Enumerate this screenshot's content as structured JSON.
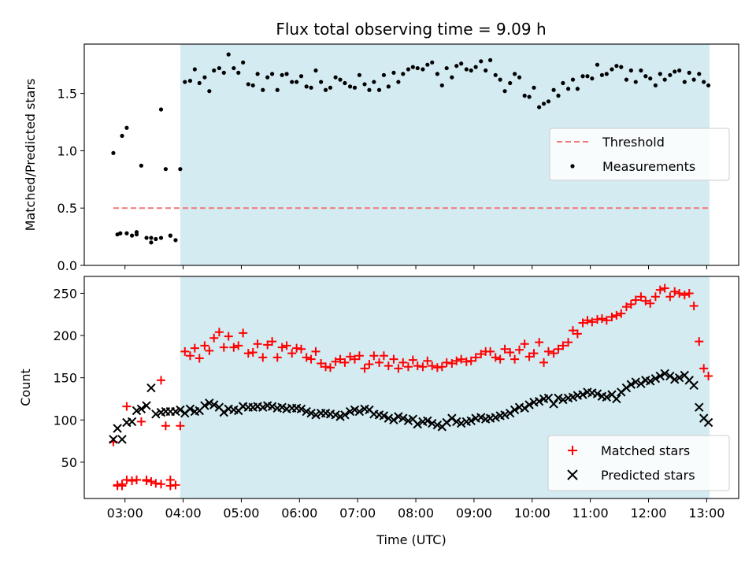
{
  "figure_title": "Flux total observing time = 9.09 h",
  "colors": {
    "shade": "#d4ebf2",
    "threshold": "#f07878",
    "measurement": "#000000",
    "matched": "#ff0000",
    "predicted": "#000000"
  },
  "chart_data": [
    {
      "type": "scatter",
      "name": "ratio",
      "title": "Flux total observing time = 9.09 h",
      "xlabel": "",
      "ylabel": "Matched/Predicted stars",
      "xlim": [
        2.3,
        13.55
      ],
      "ylim": [
        0,
        1.93
      ],
      "yticks": [
        "0.0",
        "0.5",
        "1.0",
        "1.5"
      ],
      "yticks_values": [
        0,
        0.5,
        1.0,
        1.5
      ],
      "shaded_region": [
        3.95,
        13.05
      ],
      "threshold": {
        "label": "Threshold",
        "value": 0.5,
        "x": [
          2.8,
          13.05
        ]
      },
      "legend": {
        "position": "center-right",
        "entries": [
          "Threshold",
          "Measurements"
        ]
      },
      "series": [
        {
          "name": "Measurements",
          "x": [
            2.8,
            2.87,
            2.95,
            3.03,
            3.12,
            3.2,
            3.28,
            3.37,
            3.45,
            3.53,
            3.62,
            3.7,
            3.78,
            3.87,
            3.95,
            4.03,
            4.12,
            4.2,
            4.28,
            4.37,
            4.45,
            4.53,
            4.62,
            4.7,
            4.78,
            4.87,
            4.95,
            5.03,
            5.12,
            5.2,
            5.28,
            5.37,
            5.45,
            5.53,
            5.62,
            5.7,
            5.78,
            5.87,
            5.95,
            6.03,
            6.12,
            6.2,
            6.28,
            6.37,
            6.45,
            6.53,
            6.62,
            6.7,
            6.78,
            6.87,
            6.95,
            7.03,
            7.12,
            7.2,
            7.28,
            7.37,
            7.45,
            7.53,
            7.62,
            7.7,
            7.78,
            7.87,
            7.95,
            8.03,
            8.12,
            8.2,
            8.28,
            8.37,
            8.45,
            8.53,
            8.62,
            8.7,
            8.78,
            8.87,
            8.95,
            9.03,
            9.12,
            9.2,
            9.28,
            9.37,
            9.45,
            9.53,
            9.62,
            9.7,
            9.78,
            9.87,
            9.95,
            10.03,
            10.12,
            10.2,
            10.28,
            10.37,
            10.45,
            10.53,
            10.62,
            10.7,
            10.78,
            10.87,
            10.95,
            11.03,
            11.12,
            11.2,
            11.28,
            11.37,
            11.45,
            11.53,
            11.62,
            11.7,
            11.78,
            11.87,
            11.95,
            12.03,
            12.12,
            12.2,
            12.28,
            12.37,
            12.45,
            12.53,
            12.62,
            12.7,
            12.78,
            12.87,
            12.95,
            13.03,
            2.92,
            3.03,
            3.2,
            3.45,
            3.62,
            3.78
          ],
          "y": [
            0.98,
            0.27,
            1.13,
            0.28,
            0.26,
            0.27,
            0.87,
            0.24,
            0.2,
            0.23,
            1.36,
            0.84,
            0.26,
            0.22,
            0.84,
            1.6,
            1.61,
            1.71,
            1.59,
            1.64,
            1.52,
            1.7,
            1.72,
            1.68,
            1.84,
            1.72,
            1.68,
            1.77,
            1.58,
            1.57,
            1.67,
            1.53,
            1.64,
            1.67,
            1.53,
            1.66,
            1.67,
            1.6,
            1.6,
            1.65,
            1.56,
            1.55,
            1.7,
            1.6,
            1.53,
            1.55,
            1.64,
            1.62,
            1.59,
            1.56,
            1.55,
            1.66,
            1.58,
            1.53,
            1.6,
            1.53,
            1.66,
            1.56,
            1.68,
            1.6,
            1.67,
            1.71,
            1.73,
            1.72,
            1.71,
            1.75,
            1.77,
            1.67,
            1.57,
            1.72,
            1.64,
            1.74,
            1.76,
            1.71,
            1.7,
            1.73,
            1.78,
            1.7,
            1.79,
            1.66,
            1.62,
            1.52,
            1.59,
            1.67,
            1.64,
            1.48,
            1.47,
            1.55,
            1.38,
            1.41,
            1.43,
            1.53,
            1.48,
            1.59,
            1.54,
            1.62,
            1.54,
            1.65,
            1.65,
            1.63,
            1.75,
            1.66,
            1.67,
            1.71,
            1.74,
            1.73,
            1.62,
            1.7,
            1.6,
            1.7,
            1.65,
            1.63,
            1.57,
            1.67,
            1.62,
            1.66,
            1.69,
            1.7,
            1.6,
            1.68,
            1.62,
            1.67,
            1.6,
            1.57,
            0.28,
            1.2,
            0.29,
            0.24,
            0.24,
            0.26
          ]
        }
      ]
    },
    {
      "type": "scatter",
      "name": "counts",
      "xlabel": "Time (UTC)",
      "ylabel": "Count",
      "xlim": [
        2.3,
        13.55
      ],
      "ylim": [
        7,
        270
      ],
      "xticks": [
        "03:00",
        "04:00",
        "05:00",
        "06:00",
        "07:00",
        "08:00",
        "09:00",
        "10:00",
        "11:00",
        "12:00",
        "13:00"
      ],
      "xticks_values": [
        3,
        4,
        5,
        6,
        7,
        8,
        9,
        10,
        11,
        12,
        13
      ],
      "yticks": [
        "50",
        "100",
        "150",
        "200",
        "250"
      ],
      "yticks_values": [
        50,
        100,
        150,
        200,
        250
      ],
      "shaded_region": [
        3.95,
        13.05
      ],
      "legend": {
        "position": "bottom-right",
        "entries": [
          "Matched stars",
          "Predicted stars"
        ]
      },
      "series": [
        {
          "name": "Matched stars",
          "marker": "plus",
          "x": [
            2.8,
            2.87,
            2.95,
            3.03,
            3.12,
            3.2,
            3.28,
            3.37,
            3.45,
            3.53,
            3.62,
            3.7,
            3.78,
            3.87,
            3.95,
            4.03,
            4.12,
            4.2,
            4.28,
            4.37,
            4.45,
            4.53,
            4.62,
            4.7,
            4.78,
            4.87,
            4.95,
            5.03,
            5.12,
            5.2,
            5.28,
            5.37,
            5.45,
            5.53,
            5.62,
            5.7,
            5.78,
            5.87,
            5.95,
            6.03,
            6.12,
            6.2,
            6.28,
            6.37,
            6.45,
            6.53,
            6.62,
            6.7,
            6.78,
            6.87,
            6.95,
            7.03,
            7.12,
            7.2,
            7.28,
            7.37,
            7.45,
            7.53,
            7.62,
            7.7,
            7.78,
            7.87,
            7.95,
            8.03,
            8.12,
            8.2,
            8.28,
            8.37,
            8.45,
            8.53,
            8.62,
            8.7,
            8.78,
            8.87,
            8.95,
            9.03,
            9.12,
            9.2,
            9.28,
            9.37,
            9.45,
            9.53,
            9.62,
            9.7,
            9.78,
            9.87,
            9.95,
            10.03,
            10.12,
            10.2,
            10.28,
            10.37,
            10.45,
            10.53,
            10.62,
            10.7,
            10.78,
            10.87,
            10.95,
            11.03,
            11.12,
            11.2,
            11.28,
            11.37,
            11.45,
            11.53,
            11.62,
            11.7,
            11.78,
            11.87,
            11.95,
            12.03,
            12.12,
            12.2,
            12.28,
            12.37,
            12.45,
            12.53,
            12.62,
            12.7,
            12.78,
            12.87,
            12.95,
            13.03,
            2.87,
            2.95,
            3.03,
            3.2,
            3.37,
            3.62,
            3.78
          ],
          "y": [
            74,
            23,
            22,
            116,
            28,
            29,
            98,
            28,
            27,
            25,
            147,
            93,
            29,
            23,
            93,
            181,
            176,
            185,
            173,
            188,
            182,
            197,
            204,
            186,
            199,
            186,
            188,
            203,
            179,
            180,
            190,
            174,
            189,
            193,
            174,
            186,
            188,
            179,
            185,
            184,
            174,
            172,
            181,
            167,
            163,
            162,
            169,
            172,
            168,
            175,
            172,
            176,
            161,
            166,
            176,
            168,
            176,
            164,
            172,
            161,
            168,
            163,
            171,
            164,
            163,
            170,
            164,
            162,
            163,
            168,
            167,
            170,
            172,
            169,
            170,
            174,
            178,
            181,
            181,
            174,
            172,
            184,
            180,
            172,
            183,
            190,
            175,
            179,
            192,
            168,
            181,
            179,
            184,
            188,
            192,
            206,
            202,
            215,
            218,
            216,
            219,
            220,
            218,
            222,
            224,
            226,
            234,
            237,
            242,
            246,
            241,
            238,
            246,
            254,
            256,
            246,
            252,
            250,
            248,
            250,
            235,
            193,
            161,
            152,
            22,
            24,
            29,
            29,
            29,
            24,
            22
          ]
        },
        {
          "name": "Predicted stars",
          "marker": "cross",
          "x": [
            2.8,
            2.87,
            2.95,
            3.03,
            3.12,
            3.2,
            3.28,
            3.37,
            3.45,
            3.53,
            3.62,
            3.7,
            3.78,
            3.87,
            3.95,
            4.03,
            4.12,
            4.2,
            4.28,
            4.37,
            4.45,
            4.53,
            4.62,
            4.7,
            4.78,
            4.87,
            4.95,
            5.03,
            5.12,
            5.2,
            5.28,
            5.37,
            5.45,
            5.53,
            5.62,
            5.7,
            5.78,
            5.87,
            5.95,
            6.03,
            6.12,
            6.2,
            6.28,
            6.37,
            6.45,
            6.53,
            6.62,
            6.7,
            6.78,
            6.87,
            6.95,
            7.03,
            7.12,
            7.2,
            7.28,
            7.37,
            7.45,
            7.53,
            7.62,
            7.7,
            7.78,
            7.87,
            7.95,
            8.03,
            8.12,
            8.2,
            8.28,
            8.37,
            8.45,
            8.53,
            8.62,
            8.7,
            8.78,
            8.87,
            8.95,
            9.03,
            9.12,
            9.2,
            9.28,
            9.37,
            9.45,
            9.53,
            9.62,
            9.7,
            9.78,
            9.87,
            9.95,
            10.03,
            10.12,
            10.2,
            10.28,
            10.37,
            10.45,
            10.53,
            10.62,
            10.7,
            10.78,
            10.87,
            10.95,
            11.03,
            11.12,
            11.2,
            11.28,
            11.37,
            11.45,
            11.53,
            11.62,
            11.7,
            11.78,
            11.87,
            11.95,
            12.03,
            12.12,
            12.2,
            12.28,
            12.37,
            12.45,
            12.53,
            12.62,
            12.7,
            12.78,
            12.87,
            12.95,
            13.03
          ],
          "y": [
            77,
            90,
            77,
            97,
            98,
            111,
            113,
            117,
            138,
            107,
            109,
            110,
            110,
            110,
            112,
            108,
            113,
            110,
            111,
            117,
            120,
            118,
            115,
            109,
            113,
            112,
            111,
            116,
            115,
            115,
            116,
            115,
            117,
            116,
            114,
            115,
            113,
            114,
            114,
            113,
            110,
            108,
            106,
            108,
            108,
            107,
            106,
            104,
            106,
            110,
            112,
            110,
            113,
            112,
            107,
            106,
            105,
            102,
            100,
            104,
            102,
            99,
            101,
            95,
            98,
            99,
            96,
            94,
            92,
            97,
            102,
            98,
            96,
            98,
            99,
            102,
            103,
            101,
            102,
            103,
            105,
            106,
            108,
            112,
            115,
            114,
            118,
            121,
            122,
            125,
            126,
            119,
            126,
            124,
            126,
            127,
            129,
            130,
            133,
            132,
            131,
            128,
            127,
            130,
            125,
            133,
            138,
            142,
            145,
            143,
            147,
            146,
            149,
            152,
            155,
            152,
            148,
            150,
            153,
            147,
            141,
            115,
            102,
            97
          ]
        }
      ]
    }
  ]
}
